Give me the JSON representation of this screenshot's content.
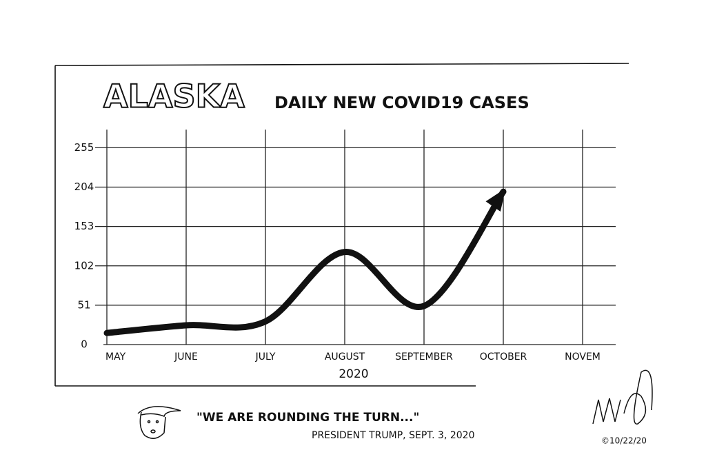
{
  "chart_data": {
    "type": "line",
    "title": "ALASKA",
    "subtitle": "DAILY NEW COVID19 CASES",
    "x_label": "2020",
    "categories": [
      "MAY",
      "JUNE",
      "JULY",
      "AUGUST",
      "SEPTEMBER",
      "OCTOBER",
      "NOVEM"
    ],
    "series": [
      {
        "name": "Daily new cases",
        "color": "#111111",
        "values": [
          15,
          25,
          30,
          120,
          50,
          198,
          null
        ]
      }
    ],
    "ylim": [
      0,
      275
    ],
    "yticks": [
      0,
      51,
      102,
      153,
      204,
      255
    ],
    "grid": true
  },
  "caption": {
    "quote": "\"WE ARE ROUNDING THE TURN...\"",
    "attribution": "PRESIDENT TRUMP, SEPT. 3, 2020",
    "signature_date": "©10/22/20"
  }
}
